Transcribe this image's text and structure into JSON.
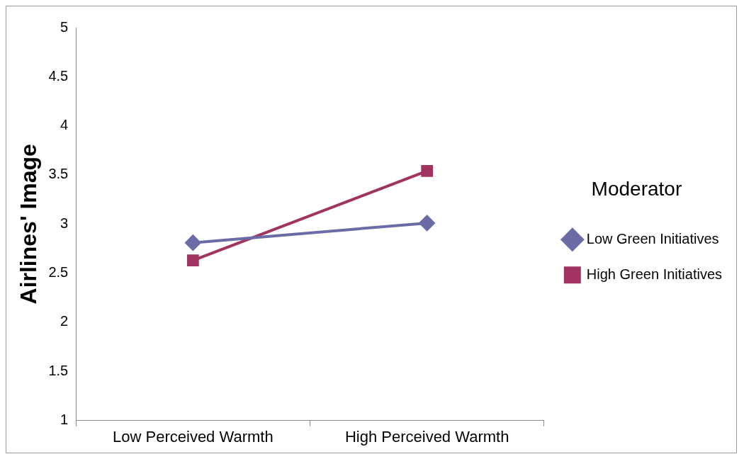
{
  "chart_data": {
    "type": "line",
    "ylabel": "Airlines' Image",
    "legend_title": "Moderator",
    "categories": [
      "Low Perceived Warmth",
      "High Perceived Warmth"
    ],
    "series": [
      {
        "name": "Low Green Initiatives",
        "color": "#6b6ba6",
        "values": [
          2.81,
          3.01
        ],
        "marker": "diamond"
      },
      {
        "name": "High Green Initiatives",
        "color": "#a0335f",
        "values": [
          2.63,
          3.54
        ],
        "marker": "square"
      }
    ],
    "ylim": [
      1,
      5
    ],
    "yticks": [
      1,
      1.5,
      2,
      2.5,
      3,
      3.5,
      4,
      4.5,
      5
    ],
    "grid": false,
    "legend": "right",
    "line_style": "solid"
  }
}
